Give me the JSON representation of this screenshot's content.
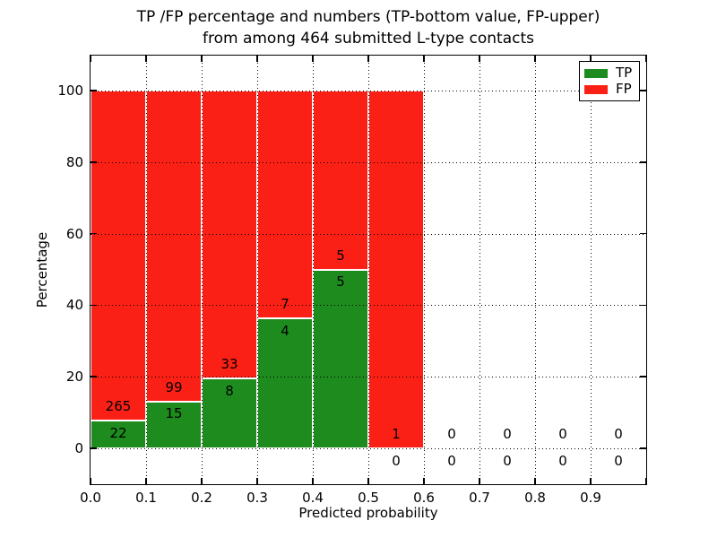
{
  "figure": {
    "title_line1": "TP /FP percentage and numbers (TP-bottom value, FP-upper)",
    "title_line2": "from among 464 submitted L-type contacts",
    "xlabel": "Predicted probability",
    "ylabel": "Percentage"
  },
  "chart_data": {
    "type": "bar",
    "subtype": "stacked-percentage-histogram",
    "title": "TP /FP percentage and numbers (TP-bottom value, FP-upper) from among 464 submitted L-type contacts",
    "xlabel": "Predicted probability",
    "ylabel": "Percentage",
    "total_contacts": 464,
    "x_tick_labels": [
      "0.0",
      "0.1",
      "0.2",
      "0.3",
      "0.4",
      "0.5",
      "0.6",
      "0.7",
      "0.8",
      "0.9"
    ],
    "y_ticks": [
      0,
      20,
      40,
      60,
      80,
      100
    ],
    "xlim": [
      0.0,
      1.0
    ],
    "ylim": [
      -10,
      110
    ],
    "grid": true,
    "grid_style": "dotted",
    "legend_position": "upper right",
    "bin_width": 0.1,
    "bin_starts": [
      0.0,
      0.1,
      0.2,
      0.3,
      0.4,
      0.5,
      0.6,
      0.7,
      0.8,
      0.9
    ],
    "series": [
      {
        "name": "TP",
        "color": "#1e8b1e",
        "counts": [
          22,
          15,
          8,
          4,
          5,
          0,
          0,
          0,
          0,
          0
        ]
      },
      {
        "name": "FP",
        "color": "#fb2015",
        "counts": [
          265,
          99,
          33,
          7,
          5,
          1,
          0,
          0,
          0,
          0
        ]
      }
    ],
    "tp_percent_per_bin": [
      7.67,
      13.16,
      19.51,
      36.36,
      50.0,
      0.0,
      0.0,
      0.0,
      0.0,
      0.0
    ],
    "annotation_rule": "FP count drawn just above green/red boundary, TP count just below"
  }
}
